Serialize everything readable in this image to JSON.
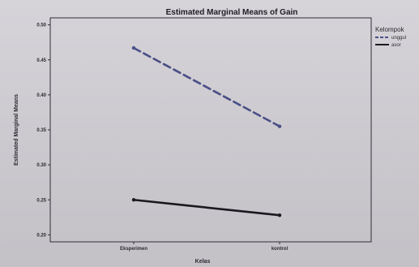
{
  "chart_data": {
    "type": "line",
    "title": "Estimated Marginal Means of Gain",
    "xlabel": "Kelas",
    "ylabel": "Estimated Marginal Means",
    "categories": [
      "Eksperimen",
      "kontrol"
    ],
    "ylim": [
      0.19,
      0.51
    ],
    "yticks": [
      "0.50",
      "0.45",
      "0.40",
      "0.35",
      "0.30",
      "0.25",
      "0.20"
    ],
    "ytick_values": [
      0.5,
      0.45,
      0.4,
      0.35,
      0.3,
      0.25,
      0.2
    ],
    "legend_title": "Kelompok",
    "legend_position": "top-right",
    "grid": false,
    "series": [
      {
        "name": "unggul",
        "values": [
          0.467,
          0.355
        ],
        "color": "#4a4f86",
        "style": "dashed"
      },
      {
        "name": "asor",
        "values": [
          0.25,
          0.228
        ],
        "color": "#1a1a1e",
        "style": "solid"
      }
    ]
  }
}
